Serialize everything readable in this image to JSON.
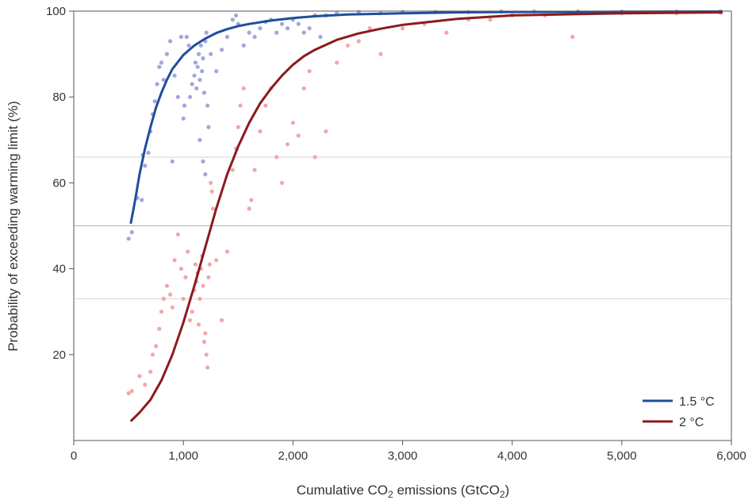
{
  "chart_data": {
    "type": "scatter",
    "xlabel_parts": [
      "Cumulative CO",
      "2",
      " emissions (GtCO",
      "2",
      ")"
    ],
    "ylabel": "Probability of exceeding warming limit (%)",
    "xlim": [
      0,
      6000
    ],
    "ylim": [
      0,
      100
    ],
    "x_ticks": [
      0,
      1000,
      2000,
      3000,
      4000,
      5000,
      6000
    ],
    "x_tick_labels": [
      "0",
      "1,000",
      "2,000",
      "3,000",
      "4,000",
      "5,000",
      "6,000"
    ],
    "y_ticks": [
      20,
      40,
      60,
      80,
      100
    ],
    "y_tick_labels": [
      "20",
      "40",
      "60",
      "80",
      "100"
    ],
    "reference_lines": [
      33,
      50,
      66
    ],
    "legend_position": "bottom-right",
    "series": [
      {
        "name": "1.5 °C",
        "color": "#1f4e9c",
        "scatter_color": "#a3a6dc",
        "curve": [
          [
            520,
            50.5
          ],
          [
            560,
            56
          ],
          [
            600,
            62
          ],
          [
            650,
            68
          ],
          [
            700,
            73
          ],
          [
            750,
            77.5
          ],
          [
            800,
            81
          ],
          [
            850,
            84
          ],
          [
            900,
            86.5
          ],
          [
            1000,
            89.8
          ],
          [
            1100,
            92
          ],
          [
            1200,
            93.6
          ],
          [
            1300,
            94.9
          ],
          [
            1400,
            95.8
          ],
          [
            1500,
            96.5
          ],
          [
            1600,
            97
          ],
          [
            1800,
            97.8
          ],
          [
            2000,
            98.4
          ],
          [
            2200,
            98.8
          ],
          [
            2500,
            99.2
          ],
          [
            3000,
            99.5
          ],
          [
            3500,
            99.7
          ],
          [
            4000,
            99.8
          ],
          [
            5000,
            99.85
          ],
          [
            5920,
            99.9
          ]
        ],
        "points": [
          [
            500,
            47
          ],
          [
            530,
            48.5
          ],
          [
            580,
            56.5
          ],
          [
            620,
            56
          ],
          [
            630,
            66.5
          ],
          [
            650,
            64
          ],
          [
            680,
            67
          ],
          [
            700,
            72
          ],
          [
            720,
            76
          ],
          [
            740,
            79
          ],
          [
            760,
            83
          ],
          [
            780,
            87
          ],
          [
            800,
            88
          ],
          [
            820,
            84
          ],
          [
            850,
            90
          ],
          [
            880,
            93
          ],
          [
            900,
            65
          ],
          [
            920,
            85
          ],
          [
            950,
            80
          ],
          [
            980,
            94
          ],
          [
            1000,
            75
          ],
          [
            1010,
            78
          ],
          [
            1030,
            94
          ],
          [
            1050,
            92
          ],
          [
            1060,
            80
          ],
          [
            1080,
            83
          ],
          [
            1100,
            85
          ],
          [
            1110,
            88
          ],
          [
            1120,
            82
          ],
          [
            1130,
            87
          ],
          [
            1140,
            90
          ],
          [
            1150,
            84
          ],
          [
            1160,
            92
          ],
          [
            1170,
            86
          ],
          [
            1180,
            89
          ],
          [
            1190,
            81
          ],
          [
            1200,
            93
          ],
          [
            1210,
            95
          ],
          [
            1220,
            78
          ],
          [
            1230,
            73
          ],
          [
            1150,
            70
          ],
          [
            1180,
            65
          ],
          [
            1200,
            62
          ],
          [
            1250,
            90
          ],
          [
            1300,
            86
          ],
          [
            1350,
            91
          ],
          [
            1400,
            94
          ],
          [
            1450,
            98
          ],
          [
            1480,
            99
          ],
          [
            1500,
            97
          ],
          [
            1550,
            92
          ],
          [
            1600,
            95
          ],
          [
            1650,
            94
          ],
          [
            1700,
            96
          ],
          [
            1750,
            97.5
          ],
          [
            1800,
            98
          ],
          [
            1850,
            95
          ],
          [
            1900,
            97
          ],
          [
            1950,
            96
          ],
          [
            2000,
            98
          ],
          [
            2050,
            97
          ],
          [
            2100,
            95
          ],
          [
            2150,
            96
          ],
          [
            2200,
            99
          ],
          [
            2250,
            94
          ],
          [
            2300,
            99
          ],
          [
            2400,
            99.5
          ],
          [
            2600,
            99.8
          ],
          [
            2800,
            99.5
          ],
          [
            3000,
            99.8
          ],
          [
            3300,
            99.8
          ],
          [
            3600,
            99.8
          ],
          [
            3900,
            99.9
          ],
          [
            4200,
            99.9
          ],
          [
            4600,
            99.9
          ],
          [
            5000,
            99.9
          ],
          [
            5500,
            99.9
          ],
          [
            5900,
            99.9
          ]
        ]
      },
      {
        "name": "2 °C",
        "color": "#8b1a1f",
        "scatter_color": "#f2a8a8",
        "curve": [
          [
            520,
            4.5
          ],
          [
            600,
            6.5
          ],
          [
            700,
            9.5
          ],
          [
            800,
            14
          ],
          [
            900,
            20
          ],
          [
            1000,
            27.5
          ],
          [
            1100,
            36
          ],
          [
            1200,
            45
          ],
          [
            1300,
            54
          ],
          [
            1400,
            62
          ],
          [
            1500,
            68.5
          ],
          [
            1600,
            74
          ],
          [
            1700,
            78.5
          ],
          [
            1800,
            82
          ],
          [
            1900,
            85
          ],
          [
            2000,
            87.5
          ],
          [
            2100,
            89.5
          ],
          [
            2200,
            91
          ],
          [
            2400,
            93.3
          ],
          [
            2600,
            94.8
          ],
          [
            2800,
            95.9
          ],
          [
            3000,
            96.8
          ],
          [
            3500,
            98.2
          ],
          [
            4000,
            99
          ],
          [
            5000,
            99.5
          ],
          [
            5920,
            99.7
          ]
        ],
        "points": [
          [
            500,
            11
          ],
          [
            530,
            11.5
          ],
          [
            600,
            15
          ],
          [
            650,
            13
          ],
          [
            700,
            16
          ],
          [
            720,
            20
          ],
          [
            750,
            22
          ],
          [
            780,
            26
          ],
          [
            800,
            30
          ],
          [
            820,
            33
          ],
          [
            850,
            36
          ],
          [
            880,
            34
          ],
          [
            900,
            31
          ],
          [
            920,
            42
          ],
          [
            950,
            48
          ],
          [
            980,
            40
          ],
          [
            1000,
            33
          ],
          [
            1020,
            38
          ],
          [
            1040,
            44
          ],
          [
            1060,
            28
          ],
          [
            1080,
            30
          ],
          [
            1100,
            35
          ],
          [
            1110,
            41
          ],
          [
            1120,
            37
          ],
          [
            1130,
            39
          ],
          [
            1140,
            27
          ],
          [
            1150,
            33
          ],
          [
            1160,
            40
          ],
          [
            1170,
            43
          ],
          [
            1180,
            36
          ],
          [
            1190,
            23
          ],
          [
            1200,
            25
          ],
          [
            1210,
            20
          ],
          [
            1220,
            17
          ],
          [
            1230,
            38
          ],
          [
            1240,
            41
          ],
          [
            1250,
            60
          ],
          [
            1260,
            58
          ],
          [
            1270,
            54
          ],
          [
            1300,
            42
          ],
          [
            1350,
            28
          ],
          [
            1400,
            44
          ],
          [
            1450,
            63
          ],
          [
            1480,
            68
          ],
          [
            1500,
            73
          ],
          [
            1520,
            78
          ],
          [
            1550,
            82
          ],
          [
            1600,
            54
          ],
          [
            1620,
            56
          ],
          [
            1650,
            63
          ],
          [
            1700,
            72
          ],
          [
            1750,
            78
          ],
          [
            1800,
            82
          ],
          [
            1850,
            66
          ],
          [
            1900,
            60
          ],
          [
            1950,
            69
          ],
          [
            2000,
            74
          ],
          [
            2050,
            71
          ],
          [
            2100,
            82
          ],
          [
            2150,
            86
          ],
          [
            2200,
            66
          ],
          [
            2300,
            72
          ],
          [
            2400,
            88
          ],
          [
            2500,
            92
          ],
          [
            2600,
            93
          ],
          [
            2700,
            96
          ],
          [
            2800,
            90
          ],
          [
            3000,
            96
          ],
          [
            3200,
            97
          ],
          [
            3400,
            95
          ],
          [
            3600,
            98
          ],
          [
            3800,
            98
          ],
          [
            4000,
            99
          ],
          [
            4300,
            99
          ],
          [
            4550,
            94
          ],
          [
            5000,
            99.5
          ],
          [
            5500,
            99.5
          ],
          [
            5900,
            99.6
          ]
        ]
      }
    ]
  }
}
